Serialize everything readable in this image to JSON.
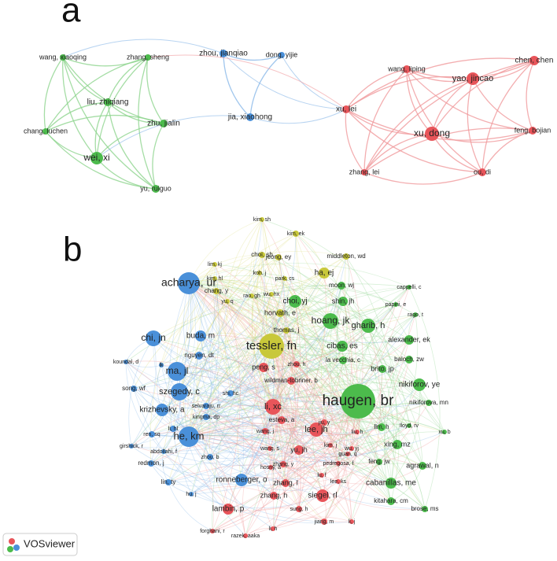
{
  "panels": [
    {
      "label": "a",
      "nodes": [
        "wang, xiaoqing",
        "zhang, sheng",
        "liu, zhiqiang",
        "zhu, jialin",
        "chang, luchen",
        "wei, xi",
        "yu, ruiguo",
        "zhou, jianqiao",
        "dong, yijie",
        "jia, xiaohong",
        "wang, liping",
        "yao, jincao",
        "chen, chen",
        "xu, lei",
        "xu, dong",
        "feng, bojian",
        "zhang, lei",
        "ou, di"
      ]
    },
    {
      "label": "b",
      "nodes": [
        "kim, sh",
        "kim, ek",
        "choi, sh",
        "jeong, ey",
        "middleton, wd",
        "lim, kj",
        "koh, j",
        "park, cs",
        "ha, ej",
        "kim, hl",
        "chang, y",
        "rao, gh",
        "wu, hx",
        "yu, q",
        "horvath, e",
        "thomas, j",
        "tessler, fn",
        "moon, wj",
        "cappelli, c",
        "choi, yj",
        "shin, jh",
        "papini, e",
        "hoang, jk",
        "rago, t",
        "gharib, h",
        "alexander, ek",
        "cibas, es",
        "baloch, zw",
        "la vecchia, c",
        "brito, jp",
        "nikiforov, ye",
        "haugen, br",
        "nikiforova, mn",
        "lim, h",
        "lloyd, rv",
        "xu, b",
        "xing, mz",
        "agrawal, n",
        "feng, jw",
        "cabanillas, me",
        "kitahara, cm",
        "brose, ms",
        "acharya, ur",
        "chi, jn",
        "buda, m",
        "koundal, d",
        "lk",
        "nguyen, dt",
        "ma, jl",
        "song, wf",
        "szegedy, c",
        "selvaraju, rr",
        "shi, hc",
        "krizhevsky, a",
        "kingma, dp",
        "li, hl",
        "ren, sq",
        "he, km",
        "girshick, r",
        "abdollahi, f",
        "zhou, b",
        "redmon, j",
        "ronneberger, o",
        "lin, ty",
        "hu, j",
        "peng, s",
        "zhou, h",
        "wildman-tobriner, b",
        "li, xc",
        "esteva, a",
        "lee, jh",
        "jiu, y",
        "liu, h",
        "wang, j",
        "wang, s",
        "yu, jh",
        "kim, j",
        "wu, yj",
        "hosny, a",
        "zhang, y",
        "pedregosa, f",
        "guan, q",
        "zhang, l",
        "lu, f",
        "lee, ks",
        "siegel, rl",
        "zhang, h",
        "lambin, p",
        "sung, h",
        "jiang, m",
        "li, j",
        "forghani, r",
        "li, h",
        "razek, aaka"
      ]
    }
  ],
  "logo": "VOSviewer"
}
